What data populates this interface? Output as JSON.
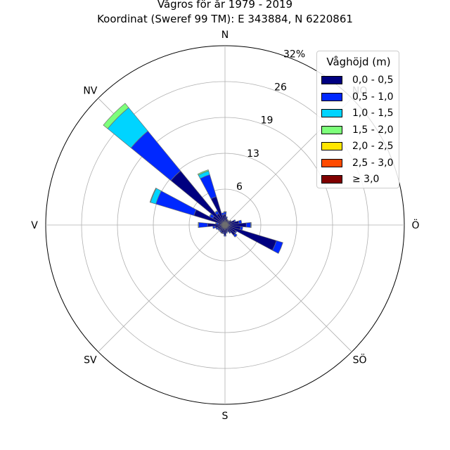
{
  "chart_data": {
    "type": "windrose",
    "title": "Vågros för år 1979 - 2019",
    "subtitle": "Koordinat (Sweref 99 TM): E 343884, N 6220861",
    "directions": [
      {
        "key": "N",
        "label": "N",
        "angle_deg": 0
      },
      {
        "key": "NO",
        "label": "NO",
        "angle_deg": 45
      },
      {
        "key": "O",
        "label": "Ö",
        "angle_deg": 90
      },
      {
        "key": "SO",
        "label": "SÖ",
        "angle_deg": 135
      },
      {
        "key": "S",
        "label": "S",
        "angle_deg": 180
      },
      {
        "key": "SV",
        "label": "SV",
        "angle_deg": 225
      },
      {
        "key": "V",
        "label": "V",
        "angle_deg": 270
      },
      {
        "key": "NV",
        "label": "NV",
        "angle_deg": 315
      }
    ],
    "radial_unit": "%",
    "radial_max": 32,
    "radial_ticks": [
      {
        "value": 6.4,
        "label": "6"
      },
      {
        "value": 12.8,
        "label": "13"
      },
      {
        "value": 19.2,
        "label": "19"
      },
      {
        "value": 25.6,
        "label": "26"
      },
      {
        "value": 32,
        "label": "32%"
      }
    ],
    "legend_title": "Våghöjd (m)",
    "legend_position": "top-right",
    "grid": true,
    "series": [
      {
        "name": "0,0 - 0,5",
        "color": "#000080"
      },
      {
        "name": "0,5 - 1,0",
        "color": "#0028ff"
      },
      {
        "name": "1,0 - 1,5",
        "color": "#00d4ff"
      },
      {
        "name": "1,5 - 2,0",
        "color": "#7dff7a"
      },
      {
        "name": "2,0 - 2,5",
        "color": "#ffe600"
      },
      {
        "name": "2,5 - 3,0",
        "color": "#ff4a00"
      },
      {
        "name": "≥ 3,0",
        "color": "#800000"
      }
    ],
    "sector_width_deg": 11.25,
    "sectors": [
      {
        "direction_deg": 0,
        "cumulative": [
          1.9,
          2.3,
          2.4,
          2.4,
          2.4,
          2.4,
          2.4
        ]
      },
      {
        "direction_deg": 11.25,
        "cumulative": [
          1.3,
          1.5,
          1.5,
          1.5,
          1.5,
          1.5,
          1.5
        ]
      },
      {
        "direction_deg": 22.5,
        "cumulative": [
          1.0,
          1.1,
          1.1,
          1.1,
          1.1,
          1.1,
          1.1
        ]
      },
      {
        "direction_deg": 33.75,
        "cumulative": [
          0.9,
          1.0,
          1.0,
          1.0,
          1.0,
          1.0,
          1.0
        ]
      },
      {
        "direction_deg": 45,
        "cumulative": [
          0.9,
          1.0,
          1.0,
          1.0,
          1.0,
          1.0,
          1.0
        ]
      },
      {
        "direction_deg": 56.25,
        "cumulative": [
          1.2,
          1.3,
          1.3,
          1.3,
          1.3,
          1.3,
          1.3
        ]
      },
      {
        "direction_deg": 67.5,
        "cumulative": [
          1.8,
          2.0,
          2.0,
          2.0,
          2.0,
          2.0,
          2.0
        ]
      },
      {
        "direction_deg": 78.75,
        "cumulative": [
          2.5,
          3.0,
          3.0,
          3.0,
          3.0,
          3.0,
          3.0
        ]
      },
      {
        "direction_deg": 90,
        "cumulative": [
          3.8,
          4.6,
          4.7,
          4.7,
          4.7,
          4.7,
          4.7
        ]
      },
      {
        "direction_deg": 101.25,
        "cumulative": [
          2.8,
          3.2,
          3.2,
          3.2,
          3.2,
          3.2,
          3.2
        ]
      },
      {
        "direction_deg": 112.5,
        "cumulative": [
          9.6,
          10.8,
          10.8,
          10.8,
          10.8,
          10.8,
          10.8
        ]
      },
      {
        "direction_deg": 123.75,
        "cumulative": [
          2.2,
          2.4,
          2.4,
          2.4,
          2.4,
          2.4,
          2.4
        ]
      },
      {
        "direction_deg": 135,
        "cumulative": [
          2.4,
          2.8,
          2.8,
          2.8,
          2.8,
          2.8,
          2.8
        ]
      },
      {
        "direction_deg": 146.25,
        "cumulative": [
          1.5,
          1.7,
          1.7,
          1.7,
          1.7,
          1.7,
          1.7
        ]
      },
      {
        "direction_deg": 157.5,
        "cumulative": [
          1.1,
          1.3,
          1.3,
          1.3,
          1.3,
          1.3,
          1.3
        ]
      },
      {
        "direction_deg": 168.75,
        "cumulative": [
          1.3,
          1.5,
          1.5,
          1.5,
          1.5,
          1.5,
          1.5
        ]
      },
      {
        "direction_deg": 180,
        "cumulative": [
          1.8,
          2.0,
          2.0,
          2.0,
          2.0,
          2.0,
          2.0
        ]
      },
      {
        "direction_deg": 191.25,
        "cumulative": [
          1.4,
          1.6,
          1.6,
          1.6,
          1.6,
          1.6,
          1.6
        ]
      },
      {
        "direction_deg": 202.5,
        "cumulative": [
          1.5,
          1.6,
          1.6,
          1.6,
          1.6,
          1.6,
          1.6
        ]
      },
      {
        "direction_deg": 213.75,
        "cumulative": [
          1.3,
          1.5,
          1.5,
          1.5,
          1.5,
          1.5,
          1.5
        ]
      },
      {
        "direction_deg": 225,
        "cumulative": [
          1.2,
          1.4,
          1.4,
          1.4,
          1.4,
          1.4,
          1.4
        ]
      },
      {
        "direction_deg": 236.25,
        "cumulative": [
          1.3,
          1.5,
          1.5,
          1.5,
          1.5,
          1.5,
          1.5
        ]
      },
      {
        "direction_deg": 247.5,
        "cumulative": [
          1.4,
          1.7,
          1.7,
          1.7,
          1.7,
          1.7,
          1.7
        ]
      },
      {
        "direction_deg": 258.75,
        "cumulative": [
          1.8,
          2.2,
          2.2,
          2.2,
          2.2,
          2.2,
          2.2
        ]
      },
      {
        "direction_deg": 270,
        "cumulative": [
          3.1,
          4.7,
          4.8,
          4.8,
          4.8,
          4.8,
          4.8
        ]
      },
      {
        "direction_deg": 281.25,
        "cumulative": [
          1.2,
          1.6,
          1.7,
          1.7,
          1.7,
          1.7,
          1.7
        ]
      },
      {
        "direction_deg": 292.5,
        "cumulative": [
          5.8,
          12.9,
          13.9,
          14.0,
          14.0,
          14.0,
          14.0
        ]
      },
      {
        "direction_deg": 303.75,
        "cumulative": [
          2.5,
          3.1,
          3.2,
          3.2,
          3.2,
          3.2,
          3.2
        ]
      },
      {
        "direction_deg": 315,
        "cumulative": [
          12.5,
          21.7,
          27.1,
          28.1,
          28.1,
          28.1,
          28.1
        ]
      },
      {
        "direction_deg": 326.25,
        "cumulative": [
          2.3,
          2.8,
          2.9,
          2.9,
          2.9,
          2.9,
          2.9
        ]
      },
      {
        "direction_deg": 337.5,
        "cumulative": [
          5.3,
          9.4,
          10.1,
          10.3,
          10.3,
          10.3,
          10.3
        ]
      },
      {
        "direction_deg": 348.75,
        "cumulative": [
          1.8,
          2.2,
          2.2,
          2.2,
          2.2,
          2.2,
          2.2
        ]
      }
    ]
  }
}
